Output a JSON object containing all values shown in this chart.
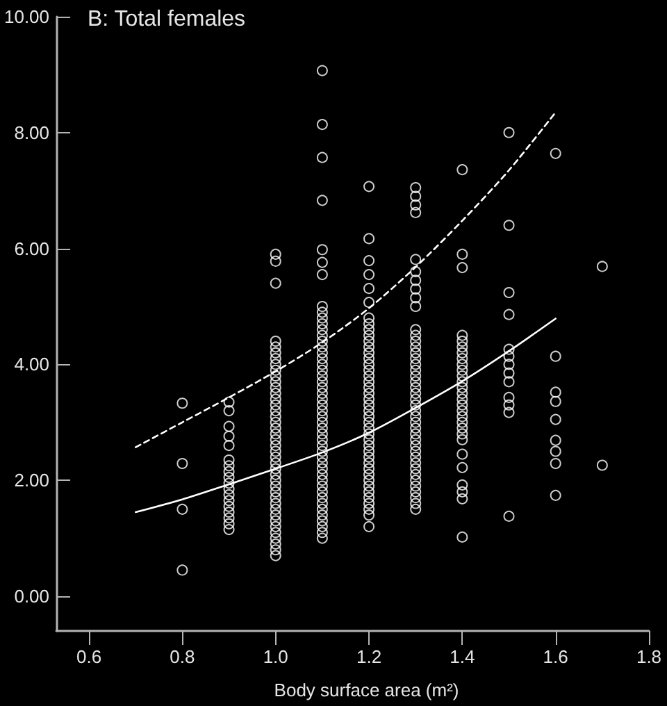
{
  "chart_data": {
    "type": "scatter",
    "title": "B: Total females",
    "xlabel": "Body surface area (m²)",
    "xlim": [
      0.53,
      1.8
    ],
    "xticks": [
      0.6,
      0.8,
      {
        "value": 1,
        "label": "1.0"
      },
      1.2,
      1.4,
      1.6,
      1.8
    ],
    "ylim": [
      -0.6,
      10
    ],
    "yticks": [
      {
        "value": 0,
        "label": "0.00"
      },
      {
        "value": 2,
        "label": "2.00"
      },
      {
        "value": 4,
        "label": "4.00"
      },
      {
        "value": 6,
        "label": "6.00"
      },
      {
        "value": 8,
        "label": "8.00"
      },
      {
        "value": 10,
        "label": "10.00"
      }
    ],
    "series": [
      {
        "color": "#ffffff",
        "marker": "circle",
        "x": [
          0.8,
          0.8,
          0.8,
          0.8,
          0.9,
          0.9,
          0.9,
          0.9,
          0.9,
          0.9,
          0.9,
          0.9,
          0.9,
          0.9,
          0.9,
          0.9,
          0.9,
          0.9,
          0.9,
          0.9,
          0.9,
          0.9,
          1.0,
          1.0,
          1.0,
          1.0,
          1.0,
          1.0,
          1.0,
          1.0,
          1.0,
          1.0,
          1.0,
          1.0,
          1.0,
          1.0,
          1.0,
          1.0,
          1.0,
          1.0,
          1.0,
          1.0,
          1.0,
          1.0,
          1.0,
          1.0,
          1.0,
          1.0,
          1.0,
          1.0,
          1.0,
          1.0,
          1.0,
          1.0,
          1.0,
          1.0,
          1.0,
          1.0,
          1.0,
          1.0,
          1.0,
          1.0,
          1.0,
          1.1,
          1.1,
          1.1,
          1.1,
          1.1,
          1.1,
          1.1,
          1.1,
          1.1,
          1.1,
          1.1,
          1.1,
          1.1,
          1.1,
          1.1,
          1.1,
          1.1,
          1.1,
          1.1,
          1.1,
          1.1,
          1.1,
          1.1,
          1.1,
          1.1,
          1.1,
          1.1,
          1.1,
          1.1,
          1.1,
          1.1,
          1.1,
          1.1,
          1.1,
          1.1,
          1.1,
          1.1,
          1.1,
          1.1,
          1.1,
          1.1,
          1.1,
          1.1,
          1.1,
          1.1,
          1.1,
          1.1,
          1.1,
          1.2,
          1.2,
          1.2,
          1.2,
          1.2,
          1.2,
          1.2,
          1.2,
          1.2,
          1.2,
          1.2,
          1.2,
          1.2,
          1.2,
          1.2,
          1.2,
          1.2,
          1.2,
          1.2,
          1.2,
          1.2,
          1.2,
          1.2,
          1.2,
          1.2,
          1.2,
          1.2,
          1.2,
          1.2,
          1.2,
          1.2,
          1.2,
          1.2,
          1.2,
          1.2,
          1.2,
          1.2,
          1.2,
          1.2,
          1.2,
          1.2,
          1.2,
          1.3,
          1.3,
          1.3,
          1.3,
          1.3,
          1.3,
          1.3,
          1.3,
          1.3,
          1.3,
          1.3,
          1.3,
          1.3,
          1.3,
          1.3,
          1.3,
          1.3,
          1.3,
          1.3,
          1.3,
          1.3,
          1.3,
          1.3,
          1.3,
          1.3,
          1.3,
          1.3,
          1.3,
          1.3,
          1.3,
          1.3,
          1.3,
          1.3,
          1.3,
          1.3,
          1.3,
          1.3,
          1.3,
          1.3,
          1.3,
          1.3,
          1.3,
          1.4,
          1.4,
          1.4,
          1.4,
          1.4,
          1.4,
          1.4,
          1.4,
          1.4,
          1.4,
          1.4,
          1.4,
          1.4,
          1.4,
          1.4,
          1.4,
          1.4,
          1.4,
          1.4,
          1.4,
          1.4,
          1.4,
          1.4,
          1.4,
          1.4,
          1.4,
          1.4,
          1.4,
          1.5,
          1.5,
          1.5,
          1.5,
          1.5,
          1.5,
          1.5,
          1.5,
          1.5,
          1.5,
          1.5,
          1.5,
          1.5,
          1.6,
          1.6,
          1.6,
          1.6,
          1.6,
          1.6,
          1.6,
          1.6,
          1.6,
          1.7,
          1.7
        ],
        "values": [
          3.33,
          2.29,
          1.5,
          0.45,
          3.35,
          3.2,
          2.93,
          2.76,
          2.6,
          2.35,
          2.25,
          2.15,
          2.05,
          1.95,
          1.85,
          1.75,
          1.65,
          1.55,
          1.45,
          1.35,
          1.25,
          1.15,
          5.9,
          5.78,
          5.4,
          4.4,
          4.3,
          4.2,
          4.1,
          4.0,
          3.9,
          3.8,
          3.7,
          3.6,
          3.5,
          3.4,
          3.3,
          3.2,
          3.1,
          3.0,
          2.9,
          2.8,
          2.7,
          2.6,
          2.5,
          2.4,
          2.3,
          2.2,
          2.1,
          2.0,
          1.9,
          1.8,
          1.7,
          1.6,
          1.5,
          1.4,
          1.3,
          1.2,
          1.1,
          1.0,
          0.9,
          0.8,
          0.7,
          9.07,
          8.14,
          7.57,
          6.83,
          5.98,
          5.76,
          5.55,
          5.0,
          4.9,
          4.8,
          4.7,
          4.6,
          4.5,
          4.4,
          4.3,
          4.2,
          4.1,
          4.0,
          3.9,
          3.8,
          3.7,
          3.6,
          3.5,
          3.4,
          3.3,
          3.2,
          3.1,
          3.0,
          2.9,
          2.8,
          2.7,
          2.6,
          2.5,
          2.4,
          2.3,
          2.2,
          2.1,
          2.0,
          1.9,
          1.8,
          1.7,
          1.6,
          1.5,
          1.4,
          1.3,
          1.2,
          1.1,
          1.0,
          7.07,
          6.17,
          5.79,
          5.55,
          5.31,
          5.07,
          4.8,
          4.7,
          4.6,
          4.5,
          4.4,
          4.3,
          4.2,
          4.1,
          4.0,
          3.9,
          3.8,
          3.7,
          3.6,
          3.5,
          3.4,
          3.3,
          3.2,
          3.1,
          3.0,
          2.9,
          2.8,
          2.7,
          2.6,
          2.5,
          2.4,
          2.3,
          2.2,
          2.1,
          2.0,
          1.9,
          1.8,
          1.7,
          1.6,
          1.5,
          1.4,
          1.2,
          7.05,
          6.9,
          6.75,
          6.62,
          5.81,
          5.6,
          5.45,
          5.3,
          5.15,
          5.0,
          4.6,
          4.5,
          4.4,
          4.3,
          4.2,
          4.1,
          4.0,
          3.9,
          3.8,
          3.7,
          3.6,
          3.5,
          3.4,
          3.3,
          3.2,
          3.1,
          3.0,
          2.9,
          2.8,
          2.7,
          2.6,
          2.5,
          2.4,
          2.3,
          2.2,
          2.1,
          2.0,
          1.9,
          1.8,
          1.7,
          1.6,
          1.5,
          7.36,
          5.9,
          5.67,
          4.5,
          4.4,
          4.3,
          4.2,
          4.1,
          4.0,
          3.9,
          3.8,
          3.7,
          3.6,
          3.5,
          3.4,
          3.3,
          3.2,
          3.1,
          3.0,
          2.9,
          2.8,
          2.7,
          2.45,
          2.22,
          1.92,
          1.8,
          1.68,
          1.02,
          8.0,
          6.4,
          5.24,
          4.86,
          4.26,
          4.14,
          4.0,
          3.85,
          3.7,
          3.43,
          3.3,
          3.17,
          1.38,
          7.64,
          4.14,
          3.52,
          3.36,
          3.05,
          2.69,
          2.5,
          2.29,
          1.74,
          5.69,
          2.26
        ]
      },
      {
        "type": "line",
        "color": "#ffffff",
        "marker": "none",
        "line_style": "dashed",
        "x": [
          0.7,
          0.8,
          0.9,
          1.0,
          1.1,
          1.2,
          1.3,
          1.4,
          1.5,
          1.6
        ],
        "values": [
          2.57,
          3.0,
          3.43,
          3.88,
          4.38,
          4.97,
          5.68,
          6.48,
          7.35,
          8.35
        ]
      },
      {
        "type": "line",
        "color": "#ffffff",
        "marker": "none",
        "line_style": "solid",
        "x": [
          0.7,
          0.8,
          0.9,
          1.0,
          1.1,
          1.2,
          1.3,
          1.4,
          1.5,
          1.6
        ],
        "values": [
          1.45,
          1.67,
          1.93,
          2.2,
          2.48,
          2.82,
          3.25,
          3.71,
          4.23,
          4.79
        ]
      }
    ]
  }
}
